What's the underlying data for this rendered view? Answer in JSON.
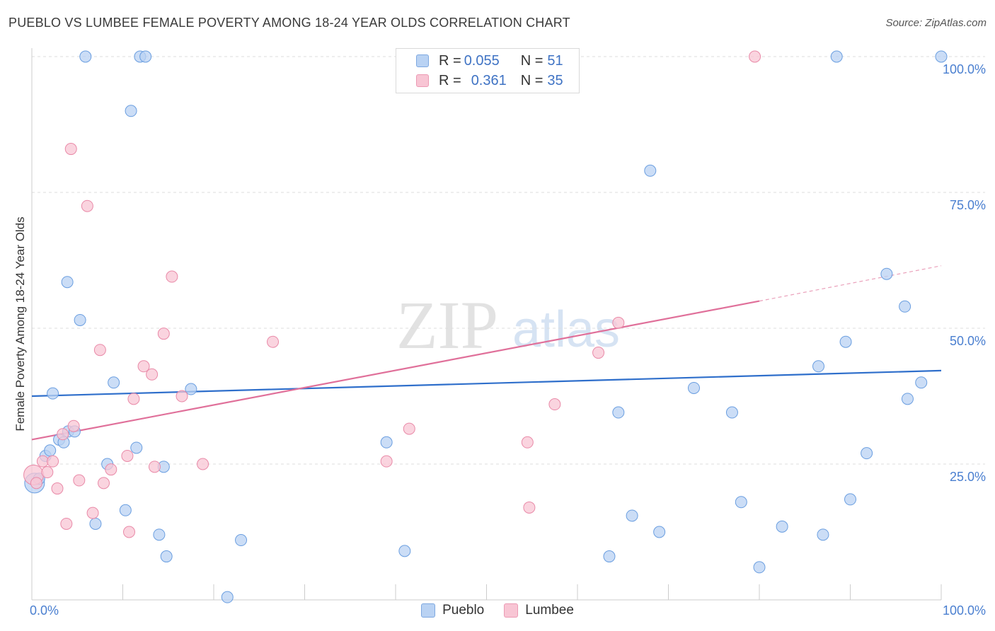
{
  "title": "PUEBLO VS LUMBEE FEMALE POVERTY AMONG 18-24 YEAR OLDS CORRELATION CHART",
  "source": "Source: ZipAtlas.com",
  "watermark": {
    "zip": "ZIP",
    "atlas": "atlas"
  },
  "legend": {
    "rows": [
      {
        "r_label": "R = ",
        "r_value": "0.055",
        "n_label": "N = ",
        "n_value": "51",
        "color": "#a8c8f0"
      },
      {
        "r_label": "R = ",
        "r_value": "0.361",
        "n_label": "N = ",
        "n_value": "35",
        "color": "#f7b8ca"
      }
    ]
  },
  "bottom_legend": [
    "Pueblo",
    "Lumbee"
  ],
  "chart_data": {
    "type": "scatter",
    "title": "PUEBLO VS LUMBEE FEMALE POVERTY AMONG 18-24 YEAR OLDS CORRELATION CHART",
    "ylabel": "Female Poverty Among 18-24 Year Olds",
    "xlabel": "",
    "xlim": [
      0,
      100
    ],
    "ylim": [
      0,
      100
    ],
    "x_tick_labels": [
      "0.0%",
      "100.0%"
    ],
    "y_ticks": [
      25,
      50,
      75,
      100
    ],
    "y_tick_labels": [
      "25.0%",
      "50.0%",
      "75.0%",
      "100.0%"
    ],
    "grid": "horizontal dashed",
    "series": [
      {
        "name": "Pueblo",
        "color": "#6a9ee0",
        "fill": "#b9d2f3",
        "r": 0.055,
        "n": 51,
        "trend": {
          "x": [
            0,
            100
          ],
          "y": [
            37.5,
            42.2
          ]
        },
        "points": [
          [
            0.3,
            21.5
          ],
          [
            0.8,
            22.3
          ],
          [
            1.5,
            26.5
          ],
          [
            2.0,
            27.5
          ],
          [
            2.3,
            38.0
          ],
          [
            3.0,
            29.5
          ],
          [
            3.5,
            29.0
          ],
          [
            4.0,
            31.0
          ],
          [
            4.7,
            31.0
          ],
          [
            3.9,
            58.5
          ],
          [
            5.3,
            51.5
          ],
          [
            5.9,
            100
          ],
          [
            7.0,
            14.0
          ],
          [
            8.3,
            25.0
          ],
          [
            9.0,
            40.0
          ],
          [
            10.3,
            16.5
          ],
          [
            10.9,
            90.0
          ],
          [
            11.5,
            28.0
          ],
          [
            11.9,
            100
          ],
          [
            12.5,
            100
          ],
          [
            14.0,
            12.0
          ],
          [
            14.5,
            24.5
          ],
          [
            14.8,
            8.0
          ],
          [
            17.5,
            38.8
          ],
          [
            21.5,
            0.5
          ],
          [
            23.0,
            11.0
          ],
          [
            39.0,
            29.0
          ],
          [
            41.0,
            9.0
          ],
          [
            43.5,
            100
          ],
          [
            45.0,
            100
          ],
          [
            63.5,
            8.0
          ],
          [
            64.5,
            34.5
          ],
          [
            66.0,
            15.5
          ],
          [
            68.0,
            79.0
          ],
          [
            69.0,
            12.5
          ],
          [
            72.8,
            39.0
          ],
          [
            77.0,
            34.5
          ],
          [
            78.0,
            18.0
          ],
          [
            80.0,
            6.0
          ],
          [
            82.5,
            13.5
          ],
          [
            86.5,
            43.0
          ],
          [
            87.0,
            12.0
          ],
          [
            88.5,
            100
          ],
          [
            89.5,
            47.5
          ],
          [
            90.0,
            18.5
          ],
          [
            91.8,
            27.0
          ],
          [
            94.0,
            60.0
          ],
          [
            96.0,
            54.0
          ],
          [
            96.3,
            37.0
          ],
          [
            97.8,
            40.0
          ],
          [
            100.0,
            100
          ]
        ]
      },
      {
        "name": "Lumbee",
        "color": "#e98aa8",
        "fill": "#f8c5d4",
        "r": 0.361,
        "n": 35,
        "trend": {
          "x": [
            0,
            80
          ],
          "y": [
            29.5,
            55.0
          ]
        },
        "trend_dashed": {
          "x": [
            80,
            100
          ],
          "y": [
            55.0,
            61.5
          ]
        },
        "points": [
          [
            0.2,
            23.0
          ],
          [
            0.5,
            21.5
          ],
          [
            1.2,
            25.5
          ],
          [
            1.7,
            23.5
          ],
          [
            2.3,
            25.5
          ],
          [
            2.8,
            20.5
          ],
          [
            3.4,
            30.5
          ],
          [
            3.8,
            14.0
          ],
          [
            4.3,
            83.0
          ],
          [
            4.6,
            32.0
          ],
          [
            5.2,
            22.0
          ],
          [
            6.1,
            72.5
          ],
          [
            6.7,
            16.0
          ],
          [
            7.5,
            46.0
          ],
          [
            7.9,
            21.5
          ],
          [
            8.7,
            24.0
          ],
          [
            10.5,
            26.5
          ],
          [
            10.7,
            12.5
          ],
          [
            11.2,
            37.0
          ],
          [
            12.3,
            43.0
          ],
          [
            13.2,
            41.5
          ],
          [
            13.5,
            24.5
          ],
          [
            14.5,
            49.0
          ],
          [
            15.4,
            59.5
          ],
          [
            16.5,
            37.5
          ],
          [
            18.8,
            25.0
          ],
          [
            26.5,
            47.5
          ],
          [
            39.0,
            25.5
          ],
          [
            41.5,
            31.5
          ],
          [
            54.5,
            29.0
          ],
          [
            54.7,
            17.0
          ],
          [
            57.5,
            36.0
          ],
          [
            62.3,
            45.5
          ],
          [
            64.5,
            51.0
          ],
          [
            79.5,
            100
          ]
        ]
      }
    ]
  }
}
